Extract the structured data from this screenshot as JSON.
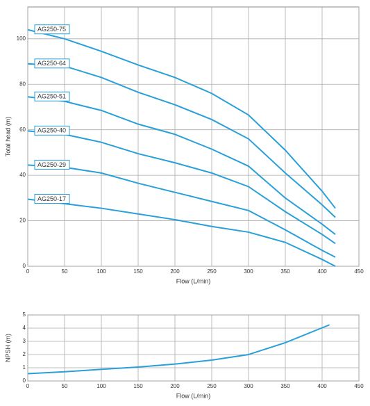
{
  "chart_data": [
    {
      "type": "line",
      "xlabel": "Flow (L/min)",
      "ylabel": "Total head (m)",
      "x": [
        0,
        50,
        100,
        150,
        200,
        250,
        300,
        350,
        400,
        418
      ],
      "series": [
        {
          "name": "AG250-75",
          "color": "#2a9fd8",
          "values": [
            104,
            100,
            94.5,
            88.5,
            83,
            76,
            66.5,
            51,
            33,
            25.5
          ]
        },
        {
          "name": "AG250-64",
          "color": "#2a9fd8",
          "values": [
            89,
            88,
            83,
            76.5,
            71,
            64.5,
            56,
            41,
            27,
            21.5
          ]
        },
        {
          "name": "AG250-51",
          "color": "#2a9fd8",
          "values": [
            74.5,
            72.5,
            68.5,
            62.5,
            58,
            51.5,
            44,
            30,
            18.5,
            14
          ]
        },
        {
          "name": "AG250-40",
          "color": "#2a9fd8",
          "values": [
            59.5,
            58,
            54.5,
            49.5,
            45.5,
            41,
            35,
            24,
            14,
            10
          ]
        },
        {
          "name": "AG250-29",
          "color": "#2a9fd8",
          "values": [
            44.5,
            43.5,
            41,
            36.5,
            32.5,
            28.5,
            24.5,
            16,
            7,
            4
          ]
        },
        {
          "name": "AG250-17",
          "color": "#2a9fd8",
          "values": [
            29.5,
            27.5,
            25.5,
            23,
            20.5,
            17.5,
            15,
            10.5,
            3,
            0
          ]
        }
      ],
      "xlim": [
        0,
        450
      ],
      "xticks": [
        0,
        50,
        100,
        150,
        200,
        250,
        300,
        350,
        400,
        450
      ],
      "ylim": [
        0,
        114
      ],
      "yticks": [
        0,
        20,
        40,
        60,
        80,
        100
      ],
      "grid": true
    },
    {
      "type": "line",
      "xlabel": "Flow (L/min)",
      "ylabel": "NPSH (m)",
      "x": [
        0,
        50,
        100,
        150,
        200,
        250,
        300,
        350,
        410
      ],
      "values": [
        0.55,
        0.7,
        0.88,
        1.05,
        1.28,
        1.58,
        2.0,
        2.9,
        4.25
      ],
      "color": "#2a9fd8",
      "xlim": [
        0,
        450
      ],
      "xticks": [
        0,
        50,
        100,
        150,
        200,
        250,
        300,
        350,
        400,
        450
      ],
      "ylim": [
        0,
        5
      ],
      "yticks": [
        0,
        1,
        2,
        3,
        4,
        5
      ],
      "grid": true
    }
  ]
}
